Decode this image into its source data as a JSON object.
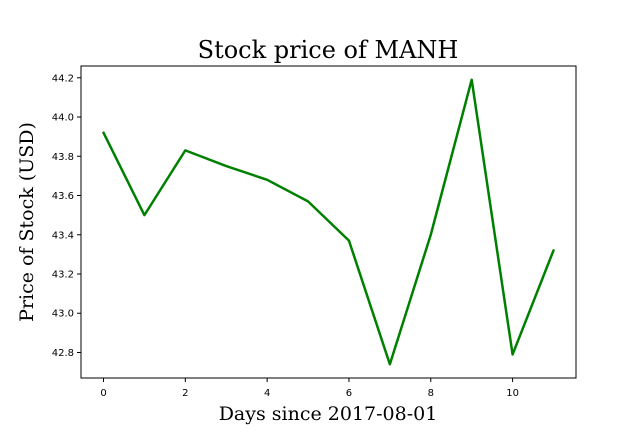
{
  "chart_data": {
    "type": "line",
    "title": "Stock price of MANH",
    "xlabel": "Days since 2017-08-01",
    "ylabel": "Price of Stock (USD)",
    "x": [
      0,
      1,
      2,
      3,
      4,
      5,
      6,
      7,
      8,
      9,
      10,
      11
    ],
    "series": [
      {
        "values": [
          43.92,
          43.5,
          43.83,
          43.75,
          43.68,
          43.57,
          43.37,
          42.74,
          43.4,
          44.19,
          42.79,
          43.32
        ],
        "color": "#008000"
      }
    ],
    "xlim": [
      -0.55,
      11.55
    ],
    "ylim": [
      42.67,
      44.26
    ],
    "xticks": [
      0,
      2,
      4,
      6,
      8,
      10
    ],
    "yticks": [
      42.8,
      43.0,
      43.2,
      43.4,
      43.6,
      43.8,
      44.0,
      44.2
    ],
    "xtick_labels": [
      "0",
      "2",
      "4",
      "6",
      "8",
      "10"
    ],
    "ytick_labels": [
      "42.8",
      "43.0",
      "43.2",
      "43.4",
      "43.6",
      "43.8",
      "44.0",
      "44.2"
    ],
    "grid": false,
    "legend": false
  }
}
